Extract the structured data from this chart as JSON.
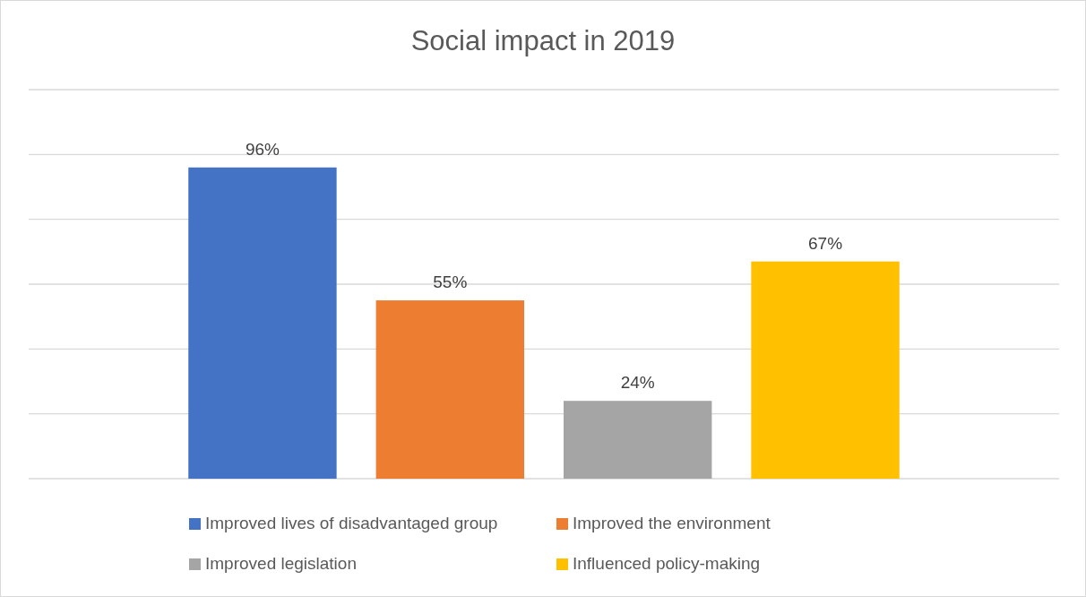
{
  "chart_data": {
    "type": "bar",
    "title": "Social impact in 2019",
    "categories": [
      null
    ],
    "series": [
      {
        "name": "Improved lives of disadvantaged group",
        "color": "#4472c4",
        "values": [
          96
        ],
        "value_labels": [
          "96%"
        ]
      },
      {
        "name": "Improved the environment",
        "color": "#ed7d31",
        "values": [
          55
        ],
        "value_labels": [
          "55%"
        ]
      },
      {
        "name": "Improved legislation",
        "color": "#a5a5a5",
        "values": [
          24
        ],
        "value_labels": [
          "24%"
        ]
      },
      {
        "name": "Influenced policy-making",
        "color": "#ffc000",
        "values": [
          67
        ],
        "value_labels": [
          "67%"
        ]
      }
    ],
    "ylim": [
      0,
      120
    ],
    "yticks": [
      {
        "value": 0,
        "label": null
      },
      {
        "value": 20,
        "label": null
      },
      {
        "value": 40,
        "label": null
      },
      {
        "value": 60,
        "label": null
      },
      {
        "value": 80,
        "label": null
      },
      {
        "value": 100,
        "label": null
      },
      {
        "value": 120,
        "label": null
      }
    ],
    "grid": "y",
    "legend": "bottom"
  }
}
